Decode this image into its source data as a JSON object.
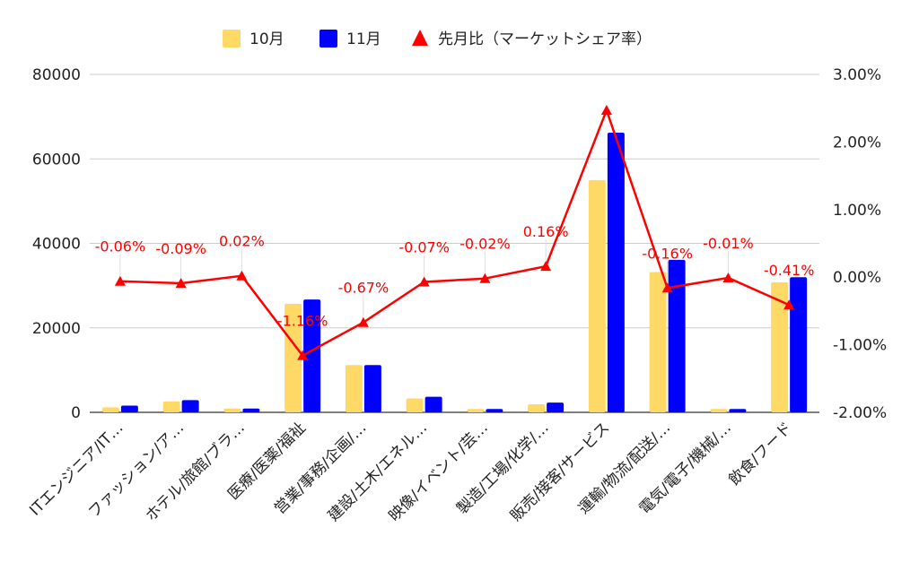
{
  "chart_data": {
    "type": "bar",
    "title": "",
    "categories": [
      "ITエンジニア/IT…",
      "ファッション/ア…",
      "ホテル/旅館/ブラ…",
      "医療/医薬/福祉",
      "営業/事務/企画/…",
      "建設/土木/エネル…",
      "映像/イベント/芸…",
      "製造/工場/化学/…",
      "販売/接客/サービス",
      "運輸/物流/配送/…",
      "電気/電子/機械/…",
      "飲食/フード"
    ],
    "series": [
      {
        "name": "10月",
        "type": "bar",
        "axis": "left",
        "color": "#ffd966",
        "values": [
          1200,
          2600,
          900,
          25700,
          11200,
          3300,
          800,
          1900,
          55000,
          33200,
          800,
          30800
        ]
      },
      {
        "name": "11月",
        "type": "bar",
        "axis": "left",
        "color": "#0000ff",
        "values": [
          1600,
          2900,
          900,
          26700,
          11200,
          3700,
          800,
          2300,
          66200,
          36100,
          800,
          32000
        ]
      },
      {
        "name": "先月比（マーケットシェア率）",
        "type": "line",
        "axis": "right",
        "color": "#ff0000",
        "values": [
          -0.06,
          -0.09,
          0.02,
          -1.16,
          -0.67,
          -0.07,
          -0.02,
          0.16,
          2.47,
          -0.16,
          -0.01,
          -0.41
        ],
        "labels": [
          "-0.06%",
          "-0.09%",
          "0.02%",
          "-1.16%",
          "-0.67%",
          "-0.07%",
          "-0.02%",
          "0.16%",
          "",
          "-0.16%",
          "-0.01%",
          "-0.41%"
        ]
      }
    ],
    "y_left": {
      "min": 0,
      "max": 80000,
      "ticks": [
        "0",
        "20000",
        "40000",
        "60000",
        "80000"
      ]
    },
    "y_right": {
      "min": -2.0,
      "max": 3.0,
      "ticks": [
        "-2.00%",
        "-1.00%",
        "0.00%",
        "1.00%",
        "2.00%",
        "3.00%"
      ]
    },
    "grid": true,
    "legend_position": "top"
  }
}
